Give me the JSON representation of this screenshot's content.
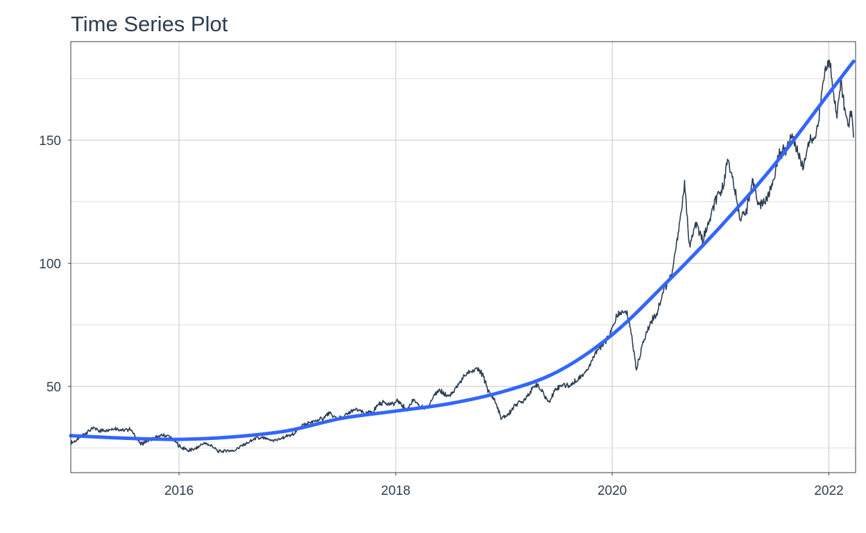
{
  "chart_data": {
    "type": "line",
    "title": "Time Series Plot",
    "xlabel": "",
    "ylabel": "",
    "x_scale": "date",
    "xlim": [
      "2015-01-01",
      "2022-04-01"
    ],
    "ylim": [
      15,
      190
    ],
    "x_ticks": [
      {
        "date": "2016-01-01",
        "label": "2016"
      },
      {
        "date": "2018-01-01",
        "label": "2018"
      },
      {
        "date": "2020-01-01",
        "label": "2020"
      },
      {
        "date": "2022-01-01",
        "label": "2022"
      }
    ],
    "y_ticks": [
      {
        "value": 50,
        "label": "50"
      },
      {
        "value": 100,
        "label": "100"
      },
      {
        "value": 150,
        "label": "150"
      }
    ],
    "grid": true,
    "legend": "none",
    "colors": {
      "series": "#2c3e50",
      "smooth": "#3366ff",
      "grid": "#c8c8c8",
      "text": "#2c3e50"
    },
    "series": [
      {
        "role": "observed",
        "points": [
          [
            "2015-01-02",
            27
          ],
          [
            "2015-01-20",
            28
          ],
          [
            "2015-02-10",
            30
          ],
          [
            "2015-03-01",
            32
          ],
          [
            "2015-03-20",
            33
          ],
          [
            "2015-04-15",
            32
          ],
          [
            "2015-05-10",
            32.5
          ],
          [
            "2015-06-05",
            33
          ],
          [
            "2015-07-01",
            32
          ],
          [
            "2015-07-20",
            33
          ],
          [
            "2015-08-15",
            28
          ],
          [
            "2015-08-25",
            26.5
          ],
          [
            "2015-09-15",
            28
          ],
          [
            "2015-10-10",
            29
          ],
          [
            "2015-11-05",
            30
          ],
          [
            "2015-11-25",
            30
          ],
          [
            "2015-12-15",
            28
          ],
          [
            "2016-01-10",
            25
          ],
          [
            "2016-02-05",
            24
          ],
          [
            "2016-03-01",
            25
          ],
          [
            "2016-03-25",
            27
          ],
          [
            "2016-04-20",
            26
          ],
          [
            "2016-05-12",
            23.5
          ],
          [
            "2016-06-10",
            24
          ],
          [
            "2016-07-05",
            24
          ],
          [
            "2016-07-30",
            26
          ],
          [
            "2016-08-20",
            27
          ],
          [
            "2016-09-15",
            29
          ],
          [
            "2016-10-10",
            29
          ],
          [
            "2016-11-05",
            28
          ],
          [
            "2016-12-01",
            28.5
          ],
          [
            "2016-12-25",
            29.5
          ],
          [
            "2017-01-20",
            30.5
          ],
          [
            "2017-02-15",
            34
          ],
          [
            "2017-03-10",
            35
          ],
          [
            "2017-04-05",
            36
          ],
          [
            "2017-05-01",
            37
          ],
          [
            "2017-05-20",
            39
          ],
          [
            "2017-06-15",
            37
          ],
          [
            "2017-07-10",
            37.5
          ],
          [
            "2017-08-05",
            40
          ],
          [
            "2017-08-25",
            40.5
          ],
          [
            "2017-09-20",
            39
          ],
          [
            "2017-10-15",
            39.5
          ],
          [
            "2017-11-05",
            43
          ],
          [
            "2017-11-25",
            43.5
          ],
          [
            "2017-12-20",
            42.5
          ],
          [
            "2018-01-10",
            44
          ],
          [
            "2018-02-08",
            40.5
          ],
          [
            "2018-02-28",
            44.5
          ],
          [
            "2018-03-25",
            41.5
          ],
          [
            "2018-04-20",
            41.5
          ],
          [
            "2018-05-10",
            47
          ],
          [
            "2018-06-05",
            48
          ],
          [
            "2018-06-25",
            46
          ],
          [
            "2018-07-15",
            47.5
          ],
          [
            "2018-08-01",
            51
          ],
          [
            "2018-08-20",
            54
          ],
          [
            "2018-09-10",
            56
          ],
          [
            "2018-10-01",
            57
          ],
          [
            "2018-10-20",
            55
          ],
          [
            "2018-11-10",
            48
          ],
          [
            "2018-11-30",
            44.5
          ],
          [
            "2018-12-24",
            37
          ],
          [
            "2019-01-15",
            38.5
          ],
          [
            "2019-02-10",
            43
          ],
          [
            "2019-03-05",
            44
          ],
          [
            "2019-03-25",
            47
          ],
          [
            "2019-04-20",
            51
          ],
          [
            "2019-05-10",
            48
          ],
          [
            "2019-06-01",
            43.5
          ],
          [
            "2019-06-25",
            49
          ],
          [
            "2019-07-20",
            51
          ],
          [
            "2019-08-10",
            50
          ],
          [
            "2019-08-30",
            52
          ],
          [
            "2019-09-20",
            54.5
          ],
          [
            "2019-10-15",
            58
          ],
          [
            "2019-11-05",
            64
          ],
          [
            "2019-11-25",
            66
          ],
          [
            "2019-12-20",
            70
          ],
          [
            "2020-01-15",
            78
          ],
          [
            "2020-02-05",
            80
          ],
          [
            "2020-02-20",
            80
          ],
          [
            "2020-03-05",
            72
          ],
          [
            "2020-03-23",
            57
          ],
          [
            "2020-04-10",
            66
          ],
          [
            "2020-05-05",
            75
          ],
          [
            "2020-06-01",
            80
          ],
          [
            "2020-06-25",
            90
          ],
          [
            "2020-07-20",
            95
          ],
          [
            "2020-08-05",
            108
          ],
          [
            "2020-08-20",
            120
          ],
          [
            "2020-09-01",
            132
          ],
          [
            "2020-09-18",
            107
          ],
          [
            "2020-10-10",
            116
          ],
          [
            "2020-11-01",
            109
          ],
          [
            "2020-11-25",
            117
          ],
          [
            "2020-12-15",
            126
          ],
          [
            "2021-01-05",
            129
          ],
          [
            "2021-01-26",
            143
          ],
          [
            "2021-02-15",
            131
          ],
          [
            "2021-03-08",
            118
          ],
          [
            "2021-04-01",
            123
          ],
          [
            "2021-04-20",
            133
          ],
          [
            "2021-05-12",
            123
          ],
          [
            "2021-06-05",
            126
          ],
          [
            "2021-06-28",
            134
          ],
          [
            "2021-07-20",
            145
          ],
          [
            "2021-08-10",
            146
          ],
          [
            "2021-08-30",
            153
          ],
          [
            "2021-09-20",
            144
          ],
          [
            "2021-10-05",
            139
          ],
          [
            "2021-10-25",
            149
          ],
          [
            "2021-11-15",
            150
          ],
          [
            "2021-12-01",
            162
          ],
          [
            "2021-12-15",
            176
          ],
          [
            "2022-01-03",
            182
          ],
          [
            "2022-01-15",
            172
          ],
          [
            "2022-01-28",
            159
          ],
          [
            "2022-02-10",
            175
          ],
          [
            "2022-02-25",
            161
          ],
          [
            "2022-03-08",
            155
          ],
          [
            "2022-03-18",
            163
          ],
          [
            "2022-03-25",
            151
          ]
        ]
      },
      {
        "role": "smoothed",
        "points": [
          [
            "2015-01-01",
            30
          ],
          [
            "2015-07-01",
            29
          ],
          [
            "2016-01-01",
            28.5
          ],
          [
            "2016-07-01",
            29.5
          ],
          [
            "2017-01-01",
            32
          ],
          [
            "2017-07-01",
            37
          ],
          [
            "2018-01-01",
            40
          ],
          [
            "2018-07-01",
            43
          ],
          [
            "2019-01-01",
            48
          ],
          [
            "2019-07-01",
            56
          ],
          [
            "2020-01-01",
            71
          ],
          [
            "2020-07-01",
            92
          ],
          [
            "2021-01-01",
            115
          ],
          [
            "2021-07-01",
            140
          ],
          [
            "2022-01-01",
            169
          ],
          [
            "2022-03-25",
            182
          ]
        ]
      }
    ]
  }
}
